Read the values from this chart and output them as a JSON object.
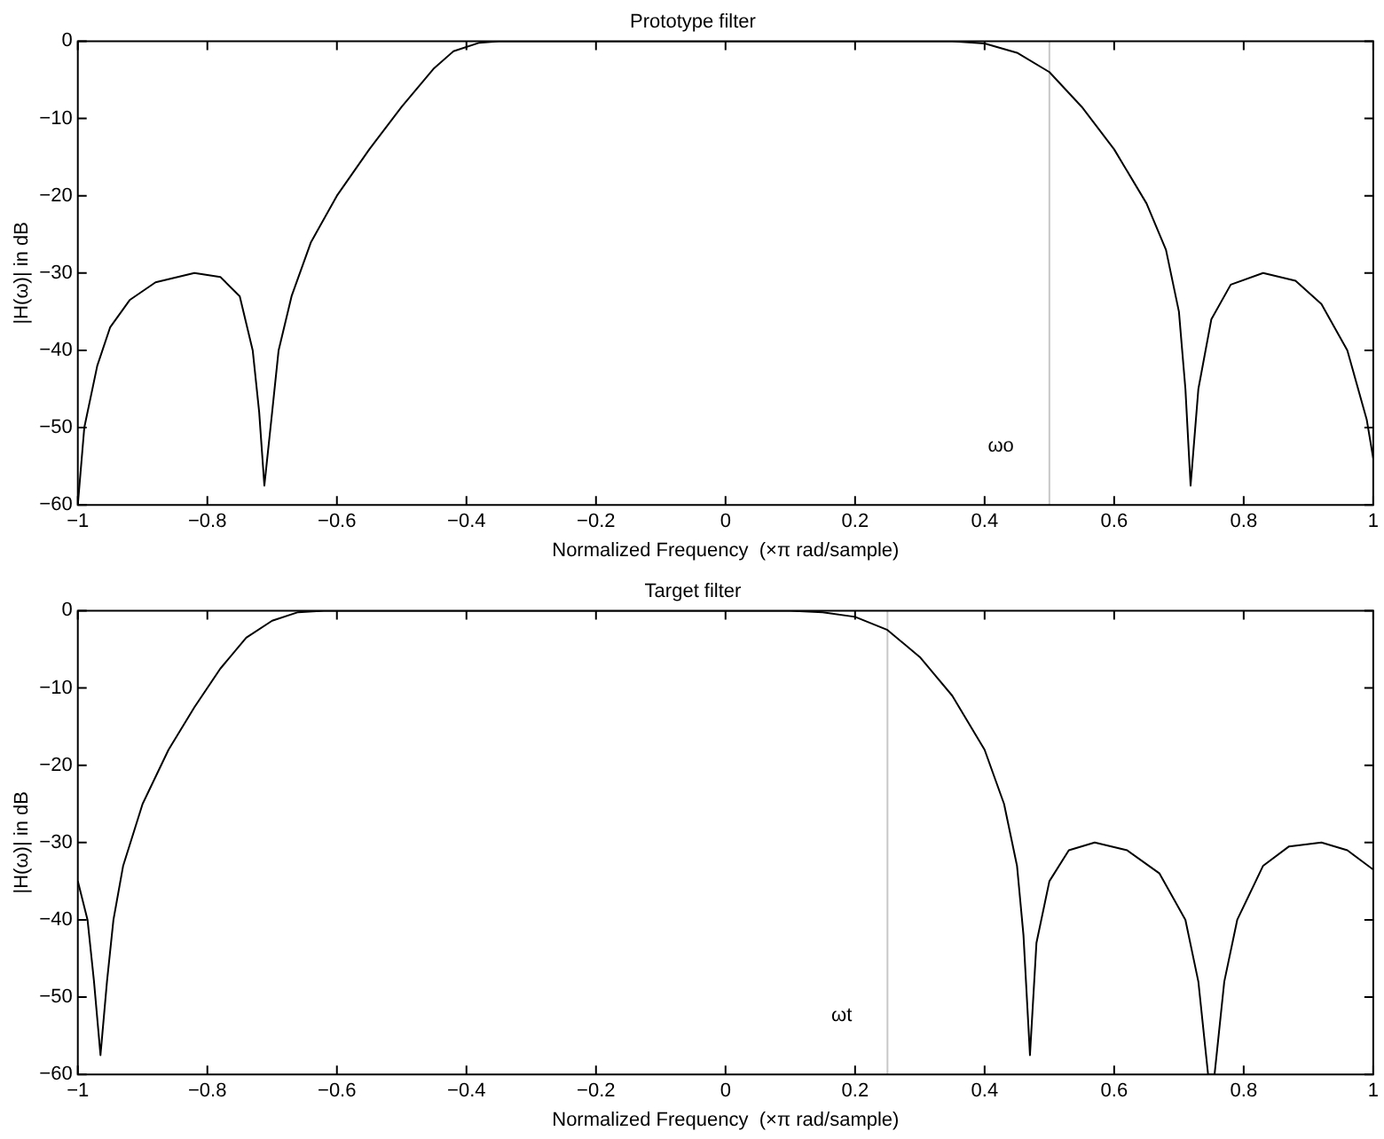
{
  "chart_data": [
    {
      "type": "line",
      "title": "Prototype filter",
      "xlabel": "Normalized Frequency  (×π rad/sample)",
      "ylabel": "|H(ω)| in dB",
      "grid": false,
      "legend": false,
      "marker": "none",
      "line_style": "solid",
      "x": [
        -1,
        -0.99,
        -0.97,
        -0.95,
        -0.92,
        -0.88,
        -0.82,
        -0.78,
        -0.75,
        -0.73,
        -0.72,
        -0.712,
        -0.7,
        -0.69,
        -0.67,
        -0.64,
        -0.6,
        -0.55,
        -0.5,
        -0.45,
        -0.42,
        -0.38,
        -0.35,
        0,
        0.35,
        0.4,
        0.45,
        0.5,
        0.55,
        0.6,
        0.65,
        0.68,
        0.7,
        0.71,
        0.718,
        0.73,
        0.75,
        0.78,
        0.83,
        0.88,
        0.92,
        0.96,
        0.99,
        1
      ],
      "series": [
        {
          "color": "#000000",
          "values": [
            -60,
            -50,
            -42,
            -37,
            -33.5,
            -31.2,
            -30,
            -30.5,
            -33,
            -40,
            -48,
            -57.5,
            -48,
            -40,
            -33,
            -26,
            -20,
            -14,
            -8.5,
            -3.5,
            -1.3,
            -0.2,
            0,
            0,
            0,
            -0.3,
            -1.5,
            -4,
            -8.5,
            -14,
            -21,
            -27,
            -35,
            -45,
            -57.5,
            -45,
            -36,
            -31.5,
            -30,
            -31,
            -34,
            -40,
            -49,
            -54
          ]
        }
      ],
      "xlim": [
        -1,
        1
      ],
      "ylim": [
        -60,
        0
      ],
      "xticks": [
        {
          "value": -1,
          "label": "−1"
        },
        {
          "value": -0.8,
          "label": "−0.8"
        },
        {
          "value": -0.6,
          "label": "−0.6"
        },
        {
          "value": -0.4,
          "label": "−0.4"
        },
        {
          "value": -0.2,
          "label": "−0.2"
        },
        0,
        0.2,
        0.4,
        0.6,
        0.8,
        1
      ],
      "yticks": [
        {
          "value": -60,
          "label": "−60"
        },
        {
          "value": -50,
          "label": "−50"
        },
        {
          "value": -40,
          "label": "−40"
        },
        {
          "value": -30,
          "label": "−30"
        },
        {
          "value": -20,
          "label": "−20"
        },
        {
          "value": -10,
          "label": "−10"
        },
        0
      ],
      "ref_lines": [
        {
          "axis": "x",
          "value": 0.5,
          "color": "#c8c8c8",
          "label": "ωo"
        }
      ]
    },
    {
      "type": "line",
      "title": "Target filter",
      "xlabel": "Normalized Frequency  (×π rad/sample)",
      "ylabel": "|H(ω)| in dB",
      "grid": false,
      "legend": false,
      "marker": "none",
      "line_style": "solid",
      "x": [
        -1,
        -0.985,
        -0.975,
        -0.965,
        -0.955,
        -0.945,
        -0.93,
        -0.9,
        -0.86,
        -0.82,
        -0.78,
        -0.74,
        -0.7,
        -0.66,
        -0.62,
        0.1,
        0.15,
        0.2,
        0.25,
        0.3,
        0.35,
        0.4,
        0.43,
        0.45,
        0.46,
        0.47,
        0.48,
        0.5,
        0.53,
        0.57,
        0.62,
        0.67,
        0.71,
        0.73,
        0.745,
        0.755,
        0.77,
        0.79,
        0.83,
        0.87,
        0.92,
        0.96,
        1
      ],
      "series": [
        {
          "color": "#000000",
          "values": [
            -35,
            -40,
            -48,
            -57.5,
            -48,
            -40,
            -33,
            -25,
            -18,
            -12.5,
            -7.5,
            -3.5,
            -1.3,
            -0.2,
            0,
            0,
            -0.2,
            -0.8,
            -2.5,
            -6,
            -11,
            -18,
            -25,
            -33,
            -42,
            -57.5,
            -43,
            -35,
            -31,
            -30,
            -31,
            -34,
            -40,
            -48,
            -60,
            -60,
            -48,
            -40,
            -33,
            -30.5,
            -30,
            -31,
            -33.5
          ]
        }
      ],
      "xlim": [
        -1,
        1
      ],
      "ylim": [
        -60,
        0
      ],
      "xticks": [
        {
          "value": -1,
          "label": "−1"
        },
        {
          "value": -0.8,
          "label": "−0.8"
        },
        {
          "value": -0.6,
          "label": "−0.6"
        },
        {
          "value": -0.4,
          "label": "−0.4"
        },
        {
          "value": -0.2,
          "label": "−0.2"
        },
        0,
        0.2,
        0.4,
        0.6,
        0.8,
        1
      ],
      "yticks": [
        {
          "value": -60,
          "label": "−60"
        },
        {
          "value": -50,
          "label": "−50"
        },
        {
          "value": -40,
          "label": "−40"
        },
        {
          "value": -30,
          "label": "−30"
        },
        {
          "value": -20,
          "label": "−20"
        },
        {
          "value": -10,
          "label": "−10"
        },
        0
      ],
      "ref_lines": [
        {
          "axis": "x",
          "value": 0.25,
          "color": "#c8c8c8",
          "label": "ωt"
        }
      ]
    }
  ]
}
